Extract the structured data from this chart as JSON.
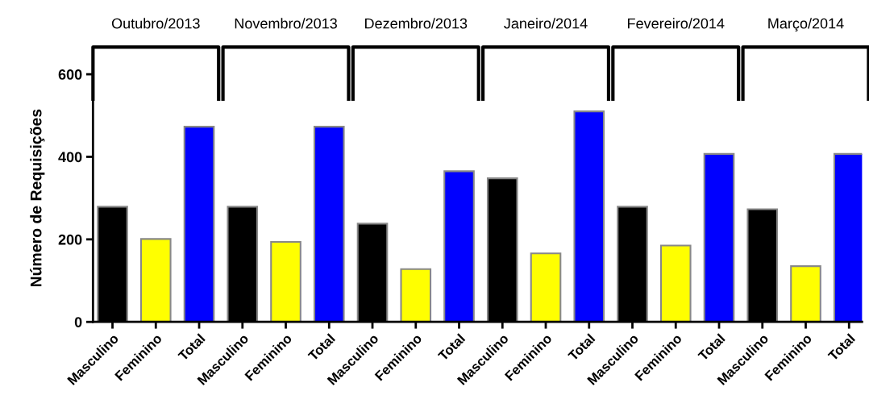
{
  "chart_data": {
    "type": "bar",
    "ylabel": "Número de Requisições",
    "categories": [
      "Masculino",
      "Feminino",
      "Total",
      "Masculino",
      "Feminino",
      "Total",
      "Masculino",
      "Feminino",
      "Total",
      "Masculino",
      "Feminino",
      "Total",
      "Masculino",
      "Feminino",
      "Total",
      "Masculino",
      "Feminino",
      "Total"
    ],
    "values": [
      279,
      201,
      473,
      279,
      194,
      473,
      238,
      128,
      365,
      348,
      166,
      510,
      279,
      185,
      407,
      273,
      135,
      407
    ],
    "colors": [
      "#000000",
      "#ffff00",
      "#0000ff",
      "#000000",
      "#ffff00",
      "#0000ff",
      "#000000",
      "#ffff00",
      "#0000ff",
      "#000000",
      "#ffff00",
      "#0000ff",
      "#000000",
      "#ffff00",
      "#0000ff",
      "#000000",
      "#ffff00",
      "#0000ff"
    ],
    "annotations": [
      "Outubro/2013",
      "Novembro/2013",
      "Dezembro/2013",
      "Janeiro/2014",
      "Fevereiro/2014",
      "Março/2014"
    ],
    "ylim": [
      0,
      600
    ],
    "yticks": [
      0,
      200,
      400,
      600
    ],
    "grid": false,
    "legend": false
  }
}
